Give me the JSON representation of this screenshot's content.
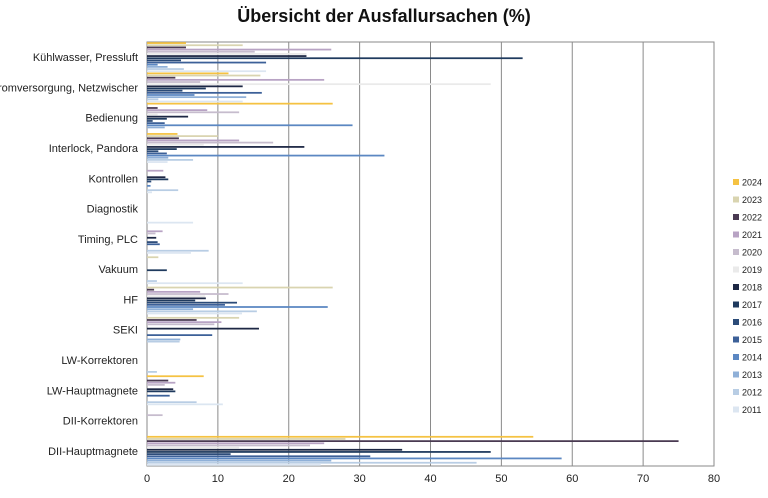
{
  "chart_data": {
    "type": "bar",
    "orientation": "horizontal",
    "title": "Übersicht der Ausfallursachen (%)",
    "xlabel": "",
    "ylabel": "",
    "xlim": [
      0,
      80
    ],
    "xticks": [
      0,
      10,
      20,
      30,
      40,
      50,
      60,
      70,
      80
    ],
    "grid": "vertical",
    "legend_position": "right",
    "categories": [
      "Kühlwasser, Pressluft",
      "Stromversorgung, Netzwischer",
      "Bedienung",
      "Interlock, Pandora",
      "Kontrollen",
      "Diagnostik",
      "Timing, PLC",
      "Vakuum",
      "HF",
      "SEKI",
      "LW-Korrektoren",
      "LW-Hauptmagnete",
      "DII-Korrektoren",
      "DII-Hauptmagnete"
    ],
    "series": [
      {
        "name": "2024",
        "color": "#f5c242",
        "values": [
          5.5,
          11.5,
          26.2,
          4.3,
          0,
          0,
          0,
          0,
          0,
          0,
          0,
          8,
          0,
          54.5
        ]
      },
      {
        "name": "2023",
        "color": "#d9d4b0",
        "values": [
          13.5,
          16,
          0,
          10,
          0,
          0,
          0,
          1.6,
          26.2,
          13,
          0,
          0,
          0,
          28
        ]
      },
      {
        "name": "2022",
        "color": "#4a3a52",
        "values": [
          5.5,
          4,
          1.5,
          4.5,
          0,
          0,
          0,
          0,
          1,
          7,
          0,
          3,
          0,
          75
        ]
      },
      {
        "name": "2021",
        "color": "#b8a3c4",
        "values": [
          26,
          25,
          8.5,
          13,
          2.3,
          0,
          2.2,
          0,
          7.5,
          10.5,
          0,
          4,
          0,
          25
        ]
      },
      {
        "name": "2020",
        "color": "#c6bccd",
        "values": [
          15.2,
          7.5,
          13,
          17.8,
          0,
          0,
          1.2,
          0,
          11.5,
          9.5,
          0,
          2.5,
          2.2,
          23
        ]
      },
      {
        "name": "2019",
        "color": "#eaeaea",
        "values": [
          22.5,
          48.5,
          1.5,
          8,
          0,
          0,
          0,
          0,
          8.2,
          0,
          0,
          0,
          0,
          13
        ]
      },
      {
        "name": "2018",
        "color": "#1d2744",
        "values": [
          22.5,
          13.5,
          5.8,
          22.2,
          2.6,
          0,
          1.3,
          0,
          8.3,
          15.8,
          0,
          3.7,
          0,
          36
        ]
      },
      {
        "name": "2017",
        "color": "#1f3a5e",
        "values": [
          53,
          8.3,
          2.8,
          4.2,
          3,
          0,
          0,
          2.8,
          6.8,
          0,
          0,
          4,
          0,
          48.5
        ]
      },
      {
        "name": "2016",
        "color": "#2b4b78",
        "values": [
          4.8,
          5,
          0.8,
          1.6,
          0.6,
          0,
          1.5,
          0,
          12.7,
          0,
          0,
          0,
          0,
          11.8
        ]
      },
      {
        "name": "2015",
        "color": "#3c6098",
        "values": [
          16.8,
          16.2,
          2.5,
          2.8,
          0,
          0,
          1.8,
          0,
          11,
          9.2,
          0,
          3.2,
          0,
          31.5
        ]
      },
      {
        "name": "2014",
        "color": "#5b87c2",
        "values": [
          1.5,
          6.7,
          29,
          33.5,
          0.5,
          0,
          0,
          0,
          25.5,
          0,
          0,
          0,
          0,
          58.5
        ]
      },
      {
        "name": "2013",
        "color": "#8fb0d8",
        "values": [
          2.9,
          14,
          2.5,
          3,
          0,
          0,
          0,
          0,
          6.5,
          4.7,
          0,
          0,
          0,
          26
        ]
      },
      {
        "name": "2012",
        "color": "#b8cde4",
        "values": [
          5.2,
          1.6,
          0,
          6.5,
          4.4,
          0,
          8.7,
          1.4,
          15.5,
          4.6,
          1.4,
          7,
          0,
          46.5
        ]
      },
      {
        "name": "2011",
        "color": "#dce6f1",
        "values": [
          16.8,
          13.5,
          0,
          2.9,
          0.7,
          6.5,
          6.2,
          13.5,
          13.4,
          0,
          0,
          10.7,
          0,
          24.5
        ]
      }
    ]
  }
}
